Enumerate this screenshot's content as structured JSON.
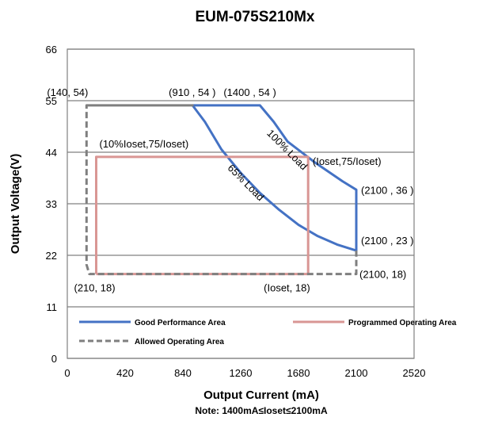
{
  "chart_data": {
    "type": "line",
    "title": "EUM-075S210Mx",
    "xlabel": "Output Current (mA)",
    "ylabel": "Output Voltage(V)",
    "note": "Note:  1400mA≤Ioset≤2100mA",
    "xlim": [
      0,
      2520
    ],
    "ylim": [
      0,
      66
    ],
    "x_ticks": [
      "0",
      "420",
      "840",
      "1260",
      "1680",
      "2100",
      "2520"
    ],
    "y_ticks": [
      "0",
      "11",
      "22",
      "33",
      "44",
      "55",
      "66"
    ],
    "grid": "horizontal",
    "legend": [
      {
        "label": "Good Performance Area",
        "color": "#4472c4",
        "style": "solid"
      },
      {
        "label": "Programmed Operating Area",
        "color": "#d99694",
        "style": "solid"
      },
      {
        "label": "Allowed Operating Area",
        "color": "#7f7f7f",
        "style": "dashed"
      }
    ],
    "series": [
      {
        "name": "Good Performance Area",
        "color": "#4472c4",
        "style": "solid",
        "points": [
          [
            910,
            54
          ],
          [
            1000,
            50.5
          ],
          [
            1120,
            44.6
          ],
          [
            1260,
            39.6
          ],
          [
            1400,
            35.3
          ],
          [
            1540,
            31.7
          ],
          [
            1680,
            28.5
          ],
          [
            1820,
            26.1
          ],
          [
            1960,
            24.3
          ],
          [
            2100,
            23
          ],
          [
            2100,
            36
          ],
          [
            2000,
            37.8
          ],
          [
            1800,
            41.8
          ],
          [
            1600,
            46.3
          ],
          [
            1500,
            50.5
          ],
          [
            1400,
            54
          ],
          [
            910,
            54
          ]
        ]
      },
      {
        "name": "Programmed Operating Area",
        "color": "#d99694",
        "style": "solid",
        "points": [
          [
            210,
            18
          ],
          [
            1750,
            18
          ],
          [
            1750,
            43
          ],
          [
            210,
            43
          ],
          [
            210,
            18
          ]
        ]
      },
      {
        "name": "Allowed Operating Area",
        "color": "#7f7f7f",
        "style": "dashed",
        "points": [
          [
            140,
            54
          ],
          [
            910,
            54
          ],
          [
            910,
            54
          ],
          [
            140,
            54
          ],
          [
            140,
            20
          ],
          [
            160,
            18
          ],
          [
            210,
            18
          ],
          [
            2100,
            18
          ],
          [
            2100,
            23
          ]
        ]
      }
    ],
    "annotations": [
      {
        "text": "(140, 54)",
        "x": 140,
        "y": 54
      },
      {
        "text": "(910 , 54 )",
        "x": 910,
        "y": 54
      },
      {
        "text": "(1400 , 54 )",
        "x": 1400,
        "y": 54
      },
      {
        "text": "(10%Ioset,75/Ioset)",
        "x": 210,
        "y": 43
      },
      {
        "text": "100% Load",
        "x": 1580,
        "y": 44
      },
      {
        "text": "(Ioset,75/Ioset)",
        "x": 1760,
        "y": 43
      },
      {
        "text": "65% Load",
        "x": 1280,
        "y": 37
      },
      {
        "text": "(2100 , 36 )",
        "x": 2100,
        "y": 36
      },
      {
        "text": "(2100 , 23 )",
        "x": 2100,
        "y": 23
      },
      {
        "text": "(2100, 18)",
        "x": 2100,
        "y": 18
      },
      {
        "text": "(210, 18)",
        "x": 210,
        "y": 18
      },
      {
        "text": "(Ioset, 18)",
        "x": 1750,
        "y": 18
      }
    ]
  }
}
